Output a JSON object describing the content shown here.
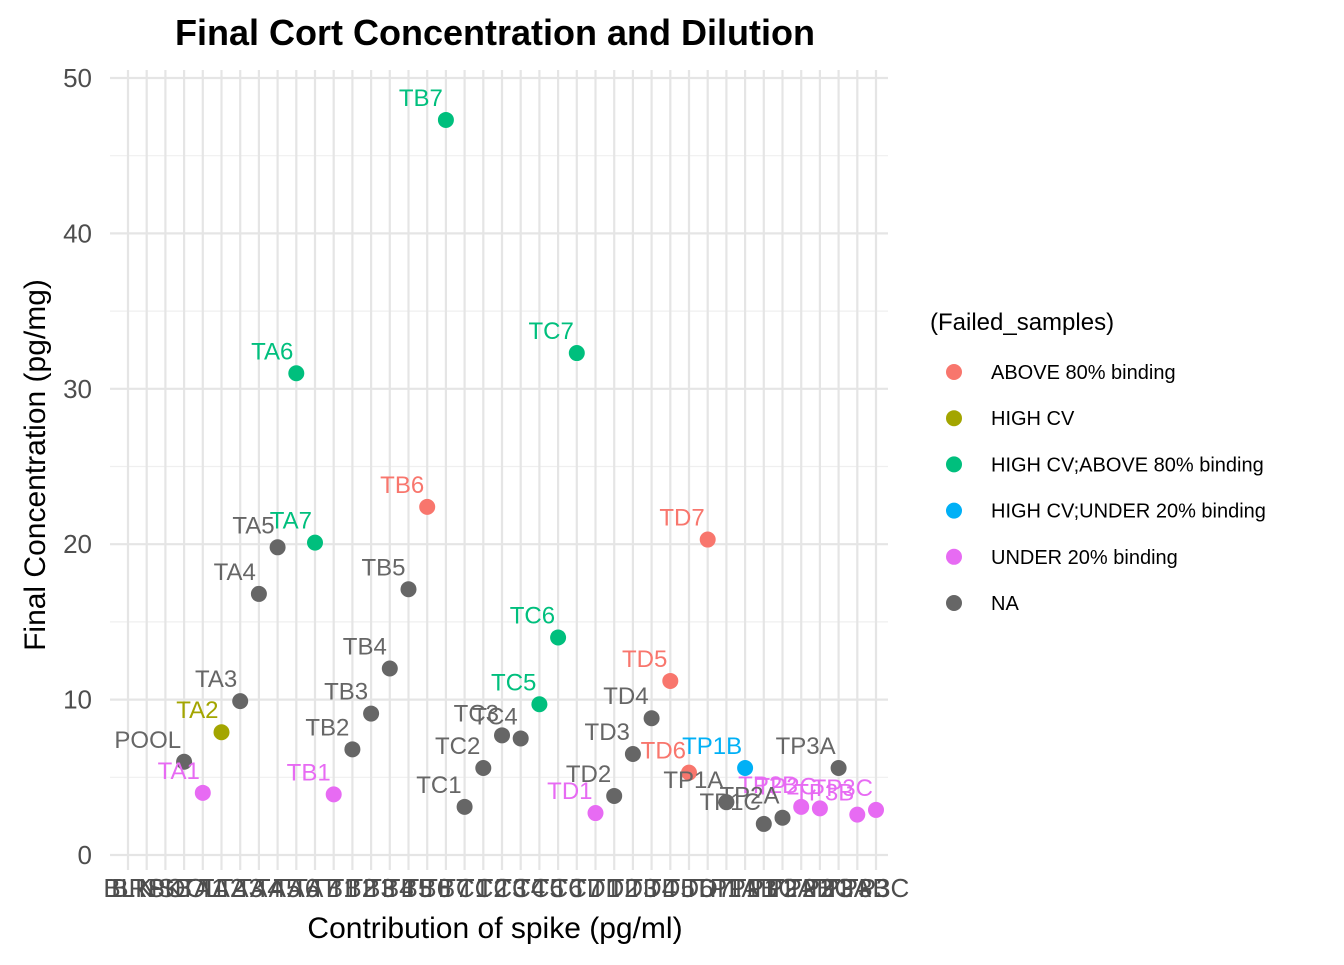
{
  "chart_data": {
    "type": "scatter",
    "title": "Final Cort Concentration and Dilution",
    "xlabel": "Contribution of spike (pg/ml)",
    "ylabel": "Final Concentration (pg/mg)",
    "ylim": [
      0,
      50
    ],
    "yticks": [
      0,
      10,
      20,
      30,
      40,
      50
    ],
    "grid": true,
    "legend_position": "right",
    "legend_title": "(Failed_samples)",
    "categories": [
      "BLK",
      "BRSK",
      "NSB",
      "POOL",
      "TA1",
      "TA2",
      "TA3",
      "TA4",
      "TA5",
      "TA6",
      "TA7",
      "TB1",
      "TB2",
      "TB3",
      "TB4",
      "TB5",
      "TB6",
      "TB7",
      "TC1",
      "TC2",
      "TC3",
      "TC4",
      "TC5",
      "TC6",
      "TC7",
      "TD1",
      "TD2",
      "TD3",
      "TD4",
      "TD5",
      "TD6",
      "TD7",
      "TP1A",
      "TP1B",
      "TP1C",
      "TP2A",
      "TP2B",
      "TP2C",
      "TP3A",
      "TP3B",
      "TP3C"
    ],
    "series": [
      {
        "name": "ABOVE 80% binding",
        "color": "#F8766D",
        "points": [
          {
            "x": "TB6",
            "y": 22.4,
            "label": "TB6"
          },
          {
            "x": "TD5",
            "y": 11.2,
            "label": "TD5"
          },
          {
            "x": "TD6",
            "y": 5.3,
            "label": "TD6"
          },
          {
            "x": "TD7",
            "y": 20.3,
            "label": "TD7"
          }
        ]
      },
      {
        "name": "HIGH CV",
        "color": "#A3A500",
        "points": [
          {
            "x": "TA2",
            "y": 7.9,
            "label": "TA2"
          }
        ]
      },
      {
        "name": "HIGH CV;ABOVE 80% binding",
        "color": "#00BF7D",
        "points": [
          {
            "x": "TA6",
            "y": 31.0,
            "label": "TA6"
          },
          {
            "x": "TA7",
            "y": 20.1,
            "label": "TA7"
          },
          {
            "x": "TB7",
            "y": 47.3,
            "label": "TB7"
          },
          {
            "x": "TC5",
            "y": 9.7,
            "label": "TC5"
          },
          {
            "x": "TC6",
            "y": 14.0,
            "label": "TC6"
          },
          {
            "x": "TC7",
            "y": 32.3,
            "label": "TC7"
          }
        ]
      },
      {
        "name": "HIGH CV;UNDER 20% binding",
        "color": "#00B0F6",
        "points": [
          {
            "x": "TP1B",
            "y": 5.6,
            "label": "TP1B"
          }
        ]
      },
      {
        "name": "UNDER 20% binding",
        "color": "#E76BF3",
        "points": [
          {
            "x": "TA1",
            "y": 4.0,
            "label": "TA1"
          },
          {
            "x": "TB1",
            "y": 3.9,
            "label": "TB1"
          },
          {
            "x": "TD1",
            "y": 2.7,
            "label": "TD1"
          },
          {
            "x": "TP2B",
            "y": 3.1,
            "label": "TP2B"
          },
          {
            "x": "TP2C",
            "y": 3.0,
            "label": "TP2C"
          },
          {
            "x": "TP3B",
            "y": 2.6,
            "label": "TP3B"
          },
          {
            "x": "TP3C",
            "y": 2.9,
            "label": "TP3C"
          }
        ]
      },
      {
        "name": "NA",
        "color": "#666666",
        "points": [
          {
            "x": "POOL",
            "y": 6.0,
            "label": "POOL"
          },
          {
            "x": "TA3",
            "y": 9.9,
            "label": "TA3"
          },
          {
            "x": "TA4",
            "y": 16.8,
            "label": "TA4"
          },
          {
            "x": "TA5",
            "y": 19.8,
            "label": "TA5"
          },
          {
            "x": "TB2",
            "y": 6.8,
            "label": "TB2"
          },
          {
            "x": "TB3",
            "y": 9.1,
            "label": "TB3"
          },
          {
            "x": "TB4",
            "y": 12.0,
            "label": "TB4"
          },
          {
            "x": "TB5",
            "y": 17.1,
            "label": "TB5"
          },
          {
            "x": "TC1",
            "y": 3.1,
            "label": "TC1"
          },
          {
            "x": "TC2",
            "y": 5.6,
            "label": "TC2"
          },
          {
            "x": "TC3",
            "y": 7.7,
            "label": "TC3"
          },
          {
            "x": "TC4",
            "y": 7.5,
            "label": "TC4"
          },
          {
            "x": "TD2",
            "y": 3.8,
            "label": "TD2"
          },
          {
            "x": "TD3",
            "y": 6.5,
            "label": "TD3"
          },
          {
            "x": "TD4",
            "y": 8.8,
            "label": "TD4"
          },
          {
            "x": "TP1A",
            "y": 3.4,
            "label": "TP1A"
          },
          {
            "x": "TP1C",
            "y": 2.0,
            "label": "TP1C"
          },
          {
            "x": "TP2A",
            "y": 2.4,
            "label": "TP2A"
          },
          {
            "x": "TP3A",
            "y": 5.6,
            "label": "TP3A"
          }
        ]
      }
    ]
  }
}
